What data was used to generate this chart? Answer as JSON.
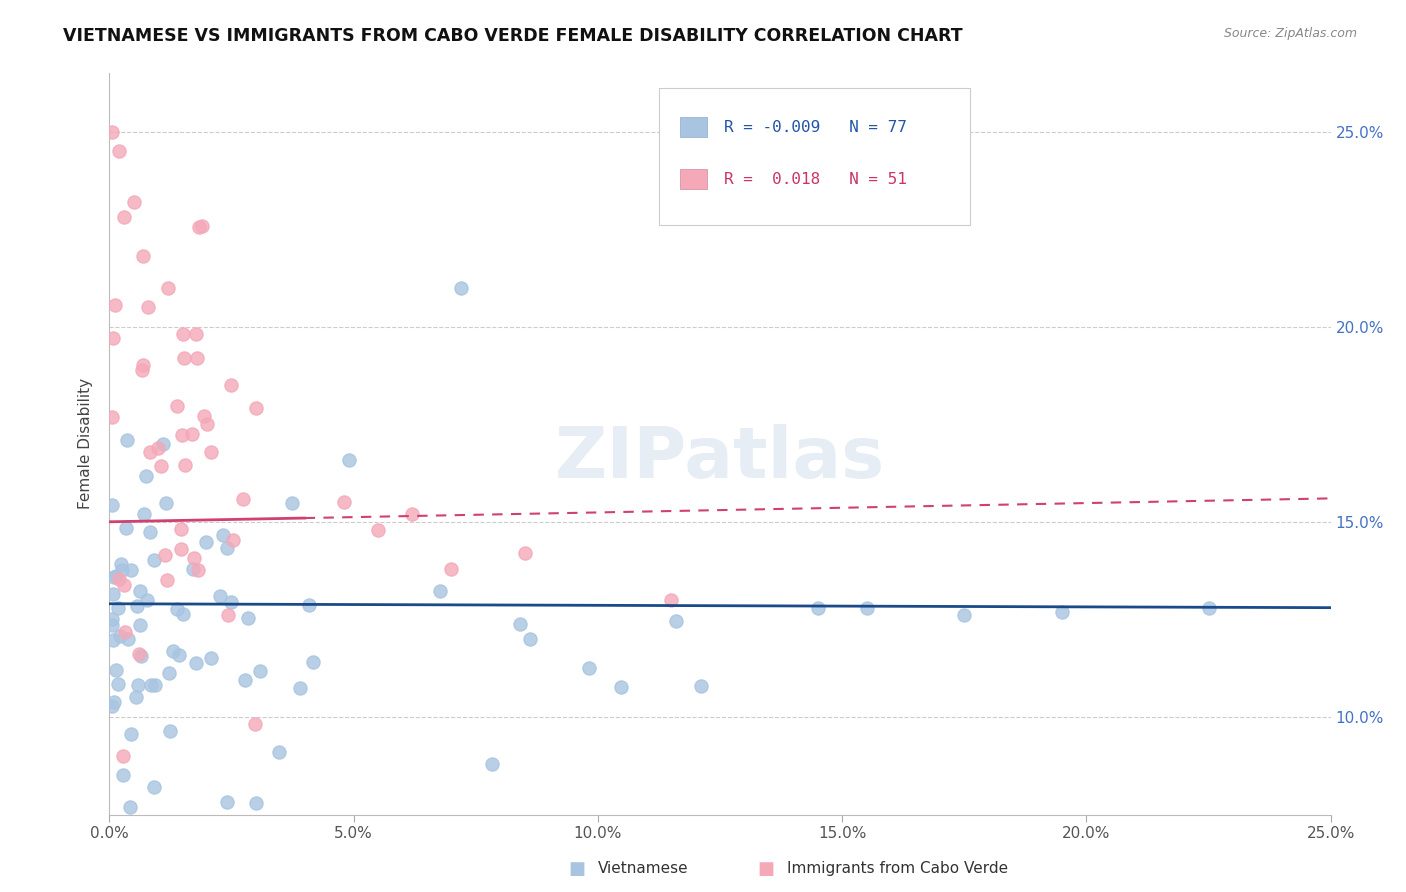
{
  "title": "VIETNAMESE VS IMMIGRANTS FROM CABO VERDE FEMALE DISABILITY CORRELATION CHART",
  "source": "Source: ZipAtlas.com",
  "ylabel": "Female Disability",
  "xlim": [
    0.0,
    0.25
  ],
  "ylim": [
    0.075,
    0.265
  ],
  "yticks": [
    0.1,
    0.15,
    0.2,
    0.25
  ],
  "xticks": [
    0.0,
    0.05,
    0.1,
    0.15,
    0.2,
    0.25
  ],
  "ytick_labels": [
    "10.0%",
    "15.0%",
    "20.0%",
    "25.0%"
  ],
  "xtick_labels": [
    "0.0%",
    "5.0%",
    "10.0%",
    "15.0%",
    "20.0%",
    "25.0%"
  ],
  "r_vietnamese": -0.009,
  "n_vietnamese": 77,
  "r_cabo_verde": 0.018,
  "n_cabo_verde": 51,
  "color_vietnamese": "#a8c4e0",
  "color_cabo_verde": "#f4a8b8",
  "line_color_vietnamese": "#1a4a8a",
  "line_color_cabo_verde": "#d04070",
  "watermark": "ZIPatlas",
  "viet_line_y0": 0.129,
  "viet_line_y1": 0.128,
  "cabo_line_y0": 0.15,
  "cabo_line_y1": 0.156
}
